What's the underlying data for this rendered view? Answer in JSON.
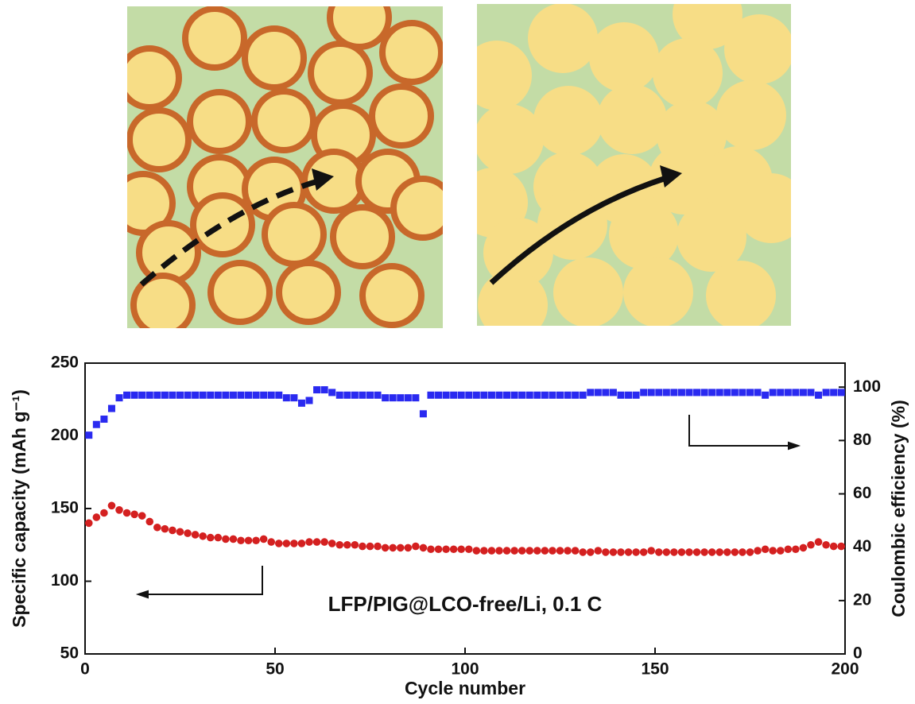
{
  "chart_data": {
    "type": "scatter",
    "xlabel": "Cycle number",
    "ylabel": "Specific capacity (mAh g⁻¹)",
    "y2label": "Coulombic efficiency (%)",
    "annotation": "LFP/PIG@LCO-free/Li, 0.1 C",
    "xlim": [
      0,
      200
    ],
    "xticks": [
      0,
      50,
      100,
      150,
      200
    ],
    "ylim": [
      50,
      250
    ],
    "yticks": [
      50,
      100,
      150,
      200,
      250
    ],
    "y2lim": [
      0,
      109
    ],
    "y2ticks": [
      0,
      20,
      40,
      60,
      80,
      100
    ],
    "x": [
      1,
      3,
      5,
      7,
      9,
      11,
      13,
      15,
      17,
      19,
      21,
      23,
      25,
      27,
      29,
      31,
      33,
      35,
      37,
      39,
      41,
      43,
      45,
      47,
      49,
      51,
      53,
      55,
      57,
      59,
      61,
      63,
      65,
      67,
      69,
      71,
      73,
      75,
      77,
      79,
      81,
      83,
      85,
      87,
      89,
      91,
      93,
      95,
      97,
      99,
      101,
      103,
      105,
      107,
      109,
      111,
      113,
      115,
      117,
      119,
      121,
      123,
      125,
      127,
      129,
      131,
      133,
      135,
      137,
      139,
      141,
      143,
      145,
      147,
      149,
      151,
      153,
      155,
      157,
      159,
      161,
      163,
      165,
      167,
      169,
      171,
      173,
      175,
      177,
      179,
      181,
      183,
      185,
      187,
      189,
      191,
      193,
      195,
      197,
      199
    ],
    "series": [
      {
        "color": "#d42020",
        "marker": "circle",
        "axis": "y",
        "values": [
          140,
          144,
          147,
          152,
          149,
          147,
          146,
          145,
          141,
          137,
          136,
          135,
          134,
          133,
          132,
          131,
          130,
          130,
          129,
          129,
          128,
          128,
          128,
          129,
          127,
          126,
          126,
          126,
          126,
          127,
          127,
          127,
          126,
          125,
          125,
          125,
          124,
          124,
          124,
          123,
          123,
          123,
          123,
          124,
          123,
          122,
          122,
          122,
          122,
          122,
          122,
          121,
          121,
          121,
          121,
          121,
          121,
          121,
          121,
          121,
          121,
          121,
          121,
          121,
          121,
          120,
          120,
          121,
          120,
          120,
          120,
          120,
          120,
          120,
          121,
          120,
          120,
          120,
          120,
          120,
          120,
          120,
          120,
          120,
          120,
          120,
          120,
          120,
          121,
          122,
          121,
          121,
          122,
          122,
          123,
          125,
          127,
          125,
          124,
          124
        ]
      },
      {
        "color": "#2a2af0",
        "marker": "square",
        "axis": "y2",
        "values": [
          82,
          86,
          88,
          92,
          96,
          97,
          97,
          97,
          97,
          97,
          97,
          97,
          97,
          97,
          97,
          97,
          97,
          97,
          97,
          97,
          97,
          97,
          97,
          97,
          97,
          97,
          96,
          96,
          94,
          95,
          99,
          99,
          98,
          97,
          97,
          97,
          97,
          97,
          97,
          96,
          96,
          96,
          96,
          96,
          90,
          97,
          97,
          97,
          97,
          97,
          97,
          97,
          97,
          97,
          97,
          97,
          97,
          97,
          97,
          97,
          97,
          97,
          97,
          97,
          97,
          97,
          98,
          98,
          98,
          98,
          97,
          97,
          97,
          98,
          98,
          98,
          98,
          98,
          98,
          98,
          98,
          98,
          98,
          98,
          98,
          98,
          98,
          98,
          98,
          97,
          98,
          98,
          98,
          98,
          98,
          98,
          97,
          98,
          98,
          98
        ]
      }
    ]
  }
}
